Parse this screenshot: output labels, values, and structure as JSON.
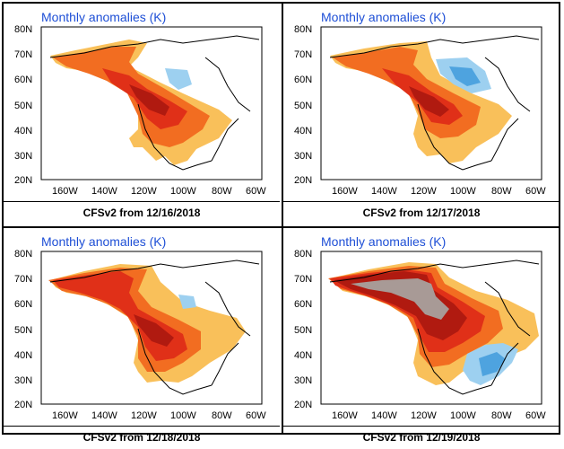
{
  "panels": [
    {
      "title": "Monthly anomalies (K)",
      "caption": "CFSv2 from 12/16/2018"
    },
    {
      "title": "Monthly anomalies (K)",
      "caption": "CFSv2 from 12/17/2018"
    },
    {
      "title": "Monthly anomalies (K)",
      "caption": "CFSv2 from 12/18/2018"
    },
    {
      "title": "Monthly anomalies (K)",
      "caption": "CFSv2 from 12/19/2018"
    }
  ],
  "axes": {
    "lat_labels": [
      "80N",
      "70N",
      "60N",
      "50N",
      "40N",
      "30N",
      "20N"
    ],
    "lon_labels": [
      "160W",
      "140W",
      "120W",
      "100W",
      "80W",
      "60W"
    ]
  },
  "colors": {
    "light_orange": "#f9c05a",
    "orange": "#f26d21",
    "red": "#e03018",
    "dark_red": "#b01a10",
    "gray": "#a89a96",
    "light_blue": "#9dd0f0",
    "blue": "#4ea3df"
  }
}
